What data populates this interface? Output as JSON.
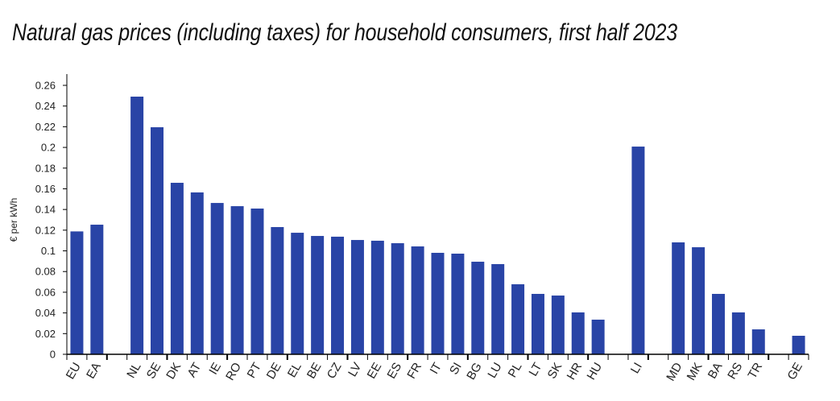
{
  "chart_data": {
    "type": "bar",
    "title": "Natural gas prices (including taxes) for household consumers, first half 2023",
    "xlabel": "",
    "ylabel": "€ per kWh",
    "ylim": [
      0,
      0.27
    ],
    "yticks": [
      0,
      0.02,
      0.04,
      0.06,
      0.08,
      0.1,
      0.12,
      0.14,
      0.16,
      0.18,
      0.2,
      0.22,
      0.24,
      0.26
    ],
    "ytick_labels": [
      "0",
      "0.02",
      "0.04",
      "0.06",
      "0.08",
      "0.1",
      "0.12",
      "0.14",
      "0.16",
      "0.18",
      "0.2",
      "0.22",
      "0.24",
      "0.26"
    ],
    "grid": false,
    "bar_color": "#2944a6",
    "categories": [
      "EU",
      "EA",
      "",
      "NL",
      "SE",
      "DK",
      "AT",
      "IE",
      "RO",
      "PT",
      "DE",
      "EL",
      "BE",
      "CZ",
      "LV",
      "EE",
      "ES",
      "FR",
      "IT",
      "SI",
      "BG",
      "LU",
      "PL",
      "LT",
      "SK",
      "HR",
      "HU",
      "",
      "LI",
      "",
      "MD",
      "MK",
      "BA",
      "RS",
      "TR",
      "",
      "GE"
    ],
    "values": [
      0.1188,
      0.1253,
      null,
      0.2491,
      0.2195,
      0.1658,
      0.1565,
      0.1463,
      0.1432,
      0.1409,
      0.123,
      0.1175,
      0.1144,
      0.1137,
      0.1105,
      0.1098,
      0.1074,
      0.1043,
      0.0981,
      0.0973,
      0.0895,
      0.0872,
      0.0677,
      0.0584,
      0.0568,
      0.0405,
      0.0335,
      null,
      0.2008,
      null,
      0.1082,
      0.1035,
      0.0584,
      0.0405,
      0.0241,
      null,
      0.0179
    ]
  }
}
